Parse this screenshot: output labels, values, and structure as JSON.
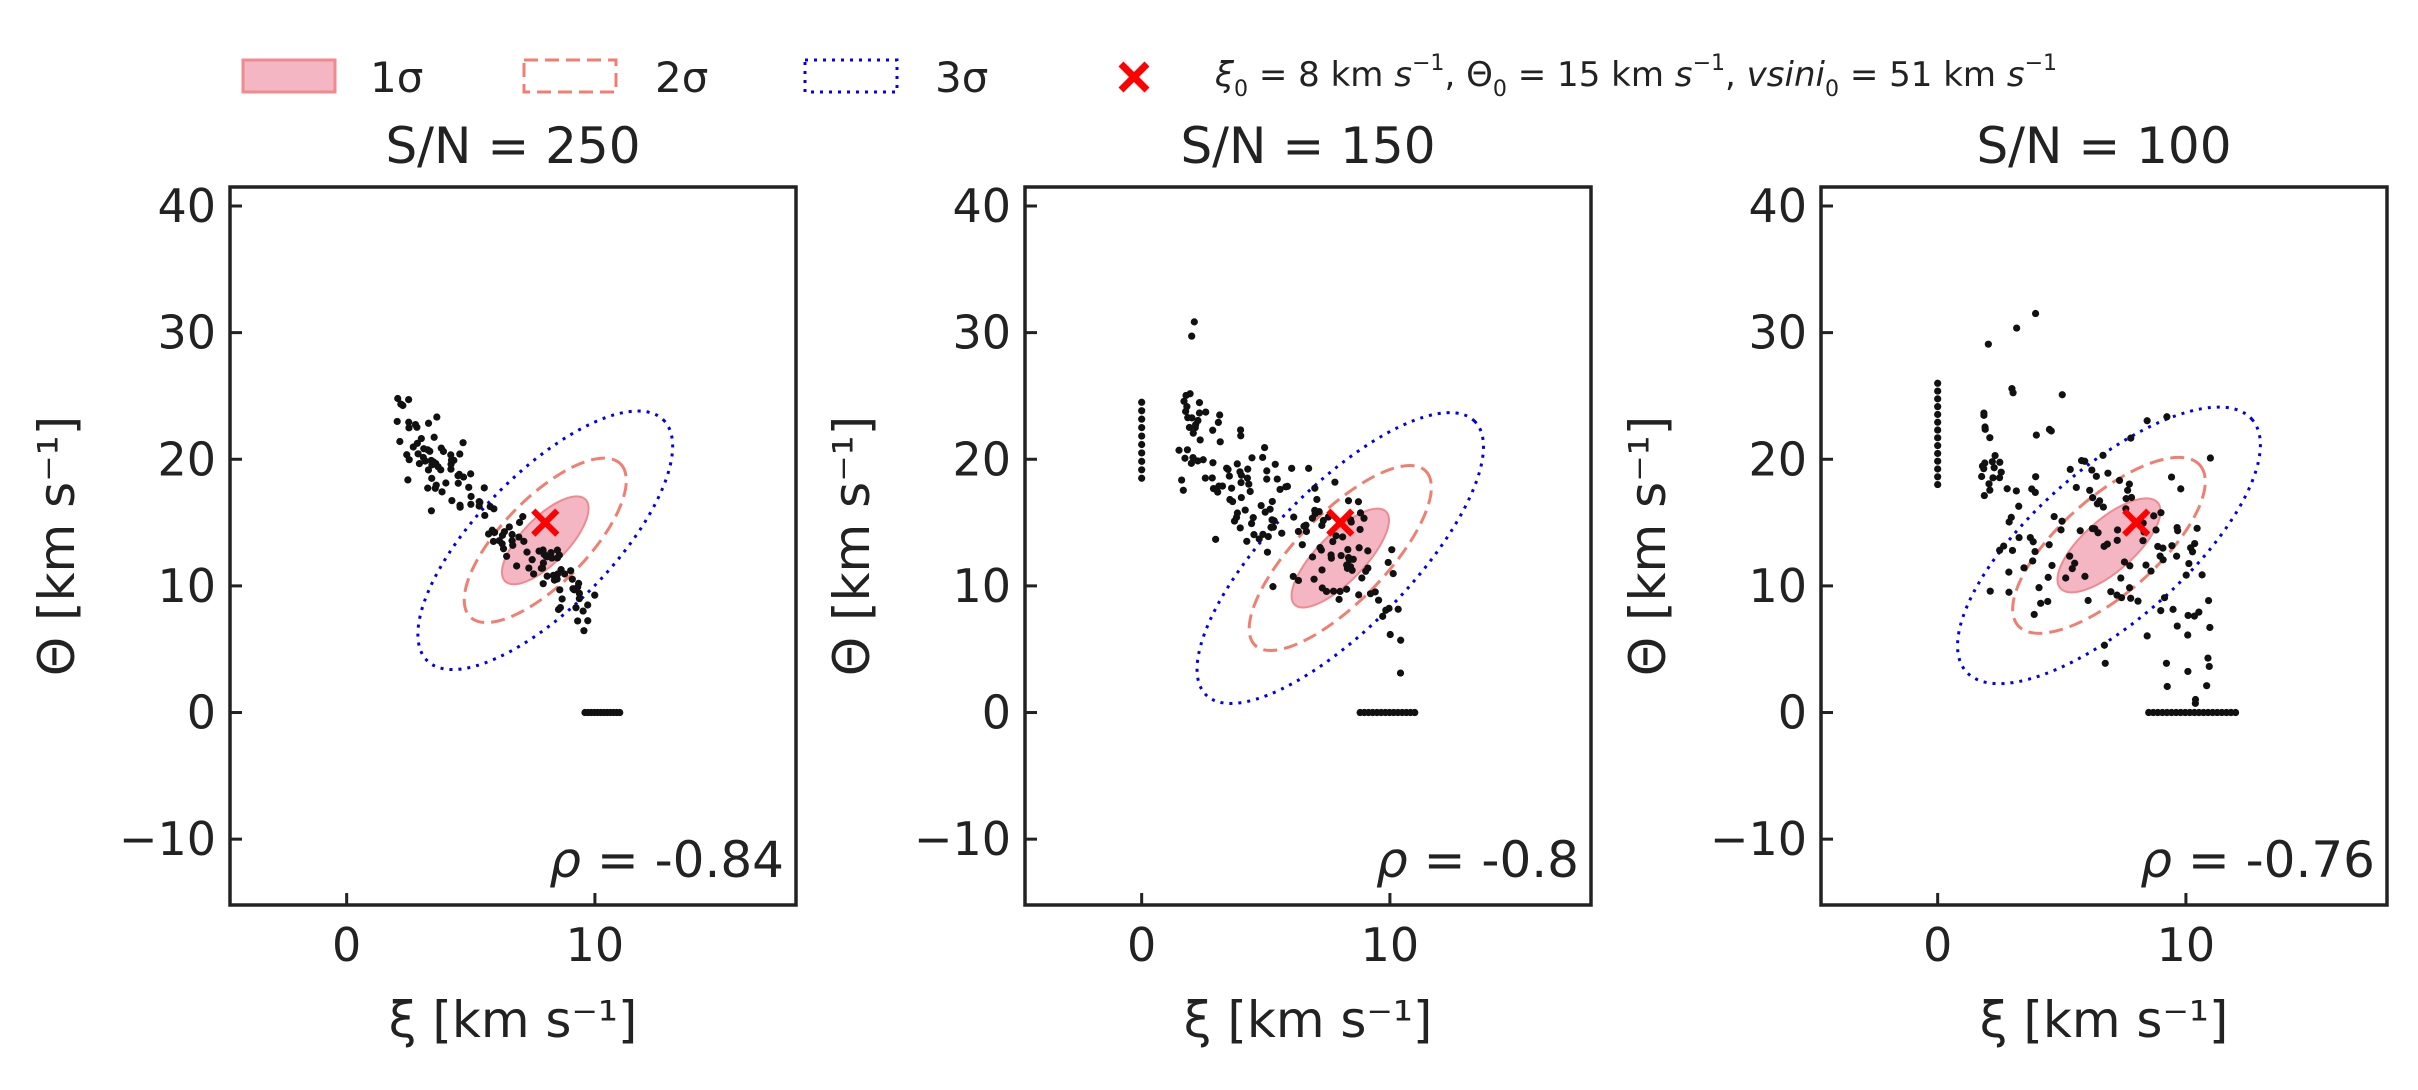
{
  "chart_data": [
    {
      "type": "scatter",
      "title": "S/N = 250",
      "xlabel": "ξ [km s⁻¹]",
      "ylabel": "Θ [km s⁻¹]",
      "xlim": [
        -4.7,
        18.1
      ],
      "ylim": [
        -15.2,
        41.5
      ],
      "xticks": [
        0,
        10
      ],
      "yticks": [
        -10,
        0,
        10,
        20,
        30,
        40
      ],
      "rho": "-0.84",
      "true_point": {
        "x": 8,
        "y": 15
      },
      "ellipse": {
        "cx": 8.0,
        "cy": 13.6,
        "a1": 4.53,
        "a2": 1.8,
        "slope": -2.0
      },
      "cluster": {
        "x0": 2.0,
        "x1": 10.0,
        "slope": -1.9,
        "intercept": 26.8,
        "spread": 1.6,
        "n": 130,
        "seed": 3
      },
      "wall": {
        "x0": 9.6,
        "x1": 11.0,
        "y": 0,
        "n": 12
      }
    },
    {
      "type": "scatter",
      "title": "S/N = 150",
      "xlabel": "ξ [km s⁻¹]",
      "ylabel": "Θ [km s⁻¹]",
      "xlim": [
        -4.7,
        18.1
      ],
      "ylim": [
        -15.2,
        41.5
      ],
      "xticks": [
        0,
        10
      ],
      "yticks": [
        -10,
        0,
        10,
        20,
        30,
        40
      ],
      "rho": "-0.8",
      "true_point": {
        "x": 8,
        "y": 15
      },
      "ellipse": {
        "cx": 8.0,
        "cy": 12.2,
        "a1": 5.15,
        "a2": 1.88,
        "slope": -2.0
      },
      "cluster": {
        "x0": 1.5,
        "x1": 10.5,
        "slope": -1.6,
        "intercept": 25.0,
        "spread": 2.6,
        "n": 160,
        "seed": 11
      },
      "wall": {
        "x0": 8.8,
        "x1": 11.0,
        "y": 0,
        "n": 14
      },
      "column": {
        "x": 0,
        "y0": 18.5,
        "y1": 24.5,
        "n": 10
      }
    },
    {
      "type": "scatter",
      "title": "S/N = 100",
      "xlabel": "ξ [km s⁻¹]",
      "ylabel": "Θ [km s⁻¹]",
      "xlim": [
        -4.7,
        18.1
      ],
      "ylim": [
        -15.2,
        41.5
      ],
      "xticks": [
        0,
        10
      ],
      "yticks": [
        -10,
        0,
        10,
        20,
        30,
        40
      ],
      "rho": "-0.76",
      "true_point": {
        "x": 8,
        "y": 15
      },
      "ellipse": {
        "cx": 6.9,
        "cy": 13.2,
        "a1": 5.12,
        "a2": 2.03,
        "slope": -1.73
      },
      "cluster": {
        "x0": 1.5,
        "x1": 11.0,
        "slope": -1.1,
        "intercept": 22.0,
        "spread": 4.5,
        "n": 150,
        "seed": 23
      },
      "wall": {
        "x0": 8.5,
        "x1": 12.0,
        "y": 0,
        "n": 20
      },
      "column": {
        "x": 0,
        "y0": 18.0,
        "y1": 26.0,
        "n": 14
      }
    }
  ],
  "sigma_scales": {
    "two": 1.87,
    "three": 2.94
  },
  "legend": {
    "items": [
      {
        "label": "1σ",
        "style": "fill"
      },
      {
        "label": "2σ",
        "style": "dashed"
      },
      {
        "label": "3σ",
        "style": "dotted"
      }
    ],
    "marker_label_parts": {
      "xi": "ξ",
      "zero": "0",
      "xi_rest": " = 8 km ",
      "s": "s",
      "m1": "−1",
      "theta": ", Θ",
      "theta_rest": " = 15 km ",
      "vsini_sep": ", ",
      "vsini": "vsini",
      "vsini_rest": " = 51 km "
    }
  },
  "colors": {
    "fill_1sigma": "#f4b6c2",
    "edge_1sigma": "#ef8a8f",
    "line_2sigma": "#f07f72",
    "line_3sigma": "#0000ee",
    "points": "#111111",
    "marker": "#ff0000",
    "axes": "#222222"
  }
}
